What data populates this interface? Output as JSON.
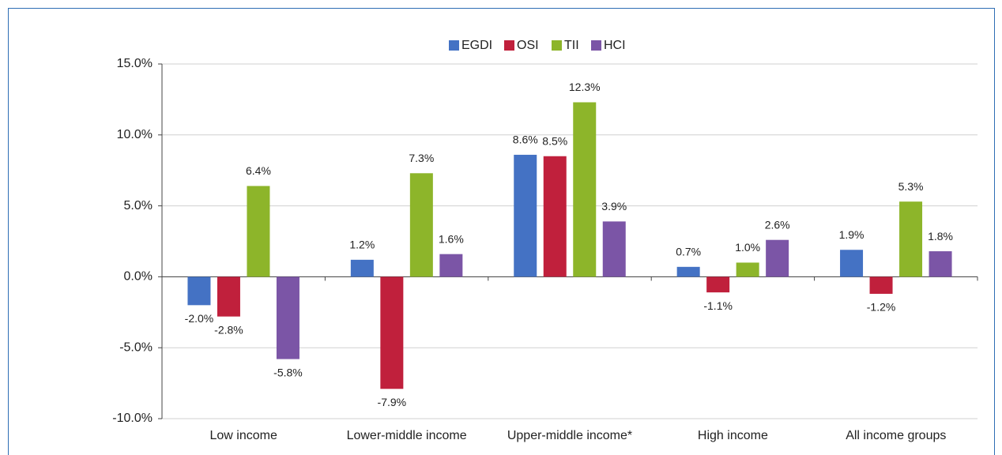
{
  "chart_data": {
    "type": "bar",
    "categories": [
      "Low income",
      "Lower-middle income",
      "Upper-middle income*",
      "High income",
      "All income groups"
    ],
    "series": [
      {
        "name": "EGDI",
        "color": "#4472c4",
        "values": [
          -2.0,
          1.2,
          8.6,
          0.7,
          1.9
        ],
        "value_labels": [
          "-2.0%",
          "1.2%",
          "8.6%",
          "0.7%",
          "1.9%"
        ]
      },
      {
        "name": "OSI",
        "color": "#c0203c",
        "values": [
          -2.8,
          -7.9,
          8.5,
          -1.1,
          -1.2
        ],
        "value_labels": [
          "-2.8%",
          "-7.9%",
          "8.5%",
          "-1.1%",
          "-1.2%"
        ]
      },
      {
        "name": "TII",
        "color": "#8db52a",
        "values": [
          6.4,
          7.3,
          12.3,
          1.0,
          5.3
        ],
        "value_labels": [
          "6.4%",
          "7.3%",
          "12.3%",
          "1.0%",
          "5.3%"
        ]
      },
      {
        "name": "HCI",
        "color": "#7b55a6",
        "values": [
          -5.8,
          1.6,
          3.9,
          2.6,
          1.8
        ],
        "value_labels": [
          "-5.8%",
          "1.6%",
          "3.9%",
          "2.6%",
          "1.8%"
        ]
      }
    ],
    "ylim": [
      -10,
      15
    ],
    "yticks": [
      {
        "value": -10,
        "label": "-10.0%"
      },
      {
        "value": -5,
        "label": "-5.0%"
      },
      {
        "value": 0,
        "label": "0.0%"
      },
      {
        "value": 5,
        "label": "5.0%"
      },
      {
        "value": 10,
        "label": "10.0%"
      },
      {
        "value": 15,
        "label": "15.0%"
      }
    ],
    "grid": true,
    "legend": "top"
  }
}
